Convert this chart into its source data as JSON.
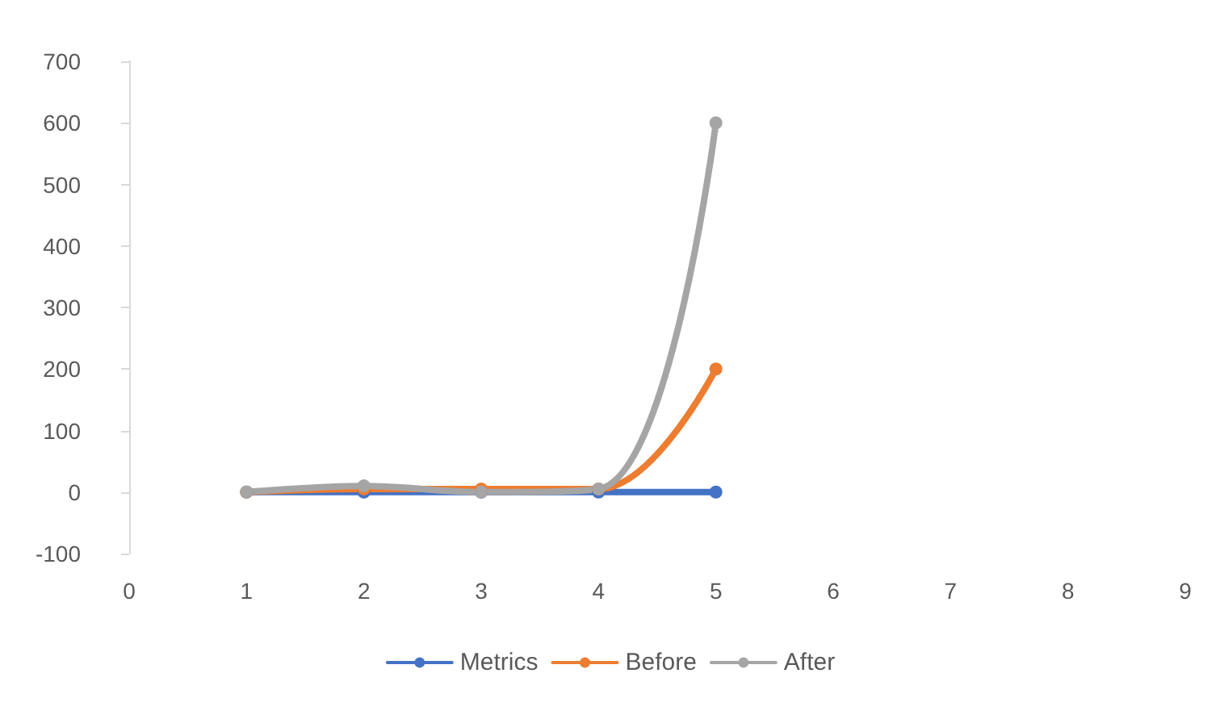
{
  "chart_data": {
    "type": "line",
    "x": [
      1,
      2,
      3,
      4,
      5
    ],
    "series": [
      {
        "name": "Metrics",
        "color": "#4472c4",
        "values": [
          0,
          0,
          0,
          0,
          0
        ]
      },
      {
        "name": "Before",
        "color": "#ed7d31",
        "values": [
          0,
          5,
          5,
          5,
          200
        ]
      },
      {
        "name": "After",
        "color": "#a5a5a5",
        "values": [
          0,
          10,
          0,
          5,
          600
        ]
      }
    ],
    "xlim": [
      0,
      9
    ],
    "xticks": [
      0,
      1,
      2,
      3,
      4,
      5,
      6,
      7,
      8,
      9
    ],
    "ylim": [
      -100,
      700
    ],
    "yticks": [
      -100,
      0,
      100,
      200,
      300,
      400,
      500,
      600,
      700
    ],
    "grid": false,
    "legend": "bottom",
    "marker": "circle",
    "line_style": "solid"
  }
}
